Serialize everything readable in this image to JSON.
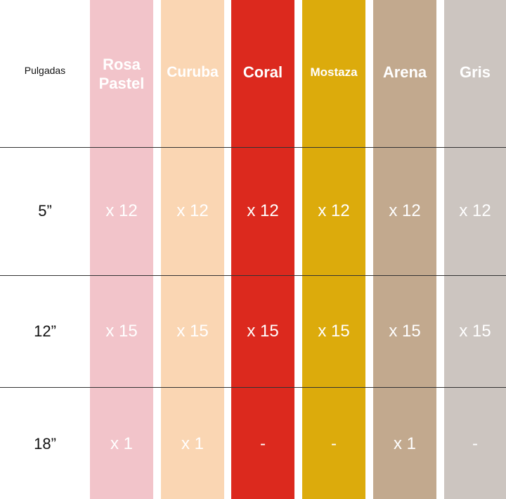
{
  "header_label": "Pulgadas",
  "columns": [
    {
      "name": "Rosa Pastel",
      "color": "#f2c4ca"
    },
    {
      "name": "Curuba",
      "color": "#fad6b3"
    },
    {
      "name": "Coral",
      "color": "#dc291e"
    },
    {
      "name": "Mostaza",
      "color": "#dcab0c"
    },
    {
      "name": "Arena",
      "color": "#c2a98e"
    },
    {
      "name": "Gris",
      "color": "#ccc5c0"
    }
  ],
  "rows": [
    {
      "size": "5”",
      "values": [
        "x 12",
        "x 12",
        "x 12",
        "x 12",
        "x 12",
        "x 12"
      ]
    },
    {
      "size": "12”",
      "values": [
        "x 15",
        "x 15",
        "x 15",
        "x 15",
        "x 15",
        "x 15"
      ]
    },
    {
      "size": "18”",
      "values": [
        "x 1",
        "x 1",
        "-",
        "-",
        "x 1",
        "-"
      ]
    }
  ]
}
